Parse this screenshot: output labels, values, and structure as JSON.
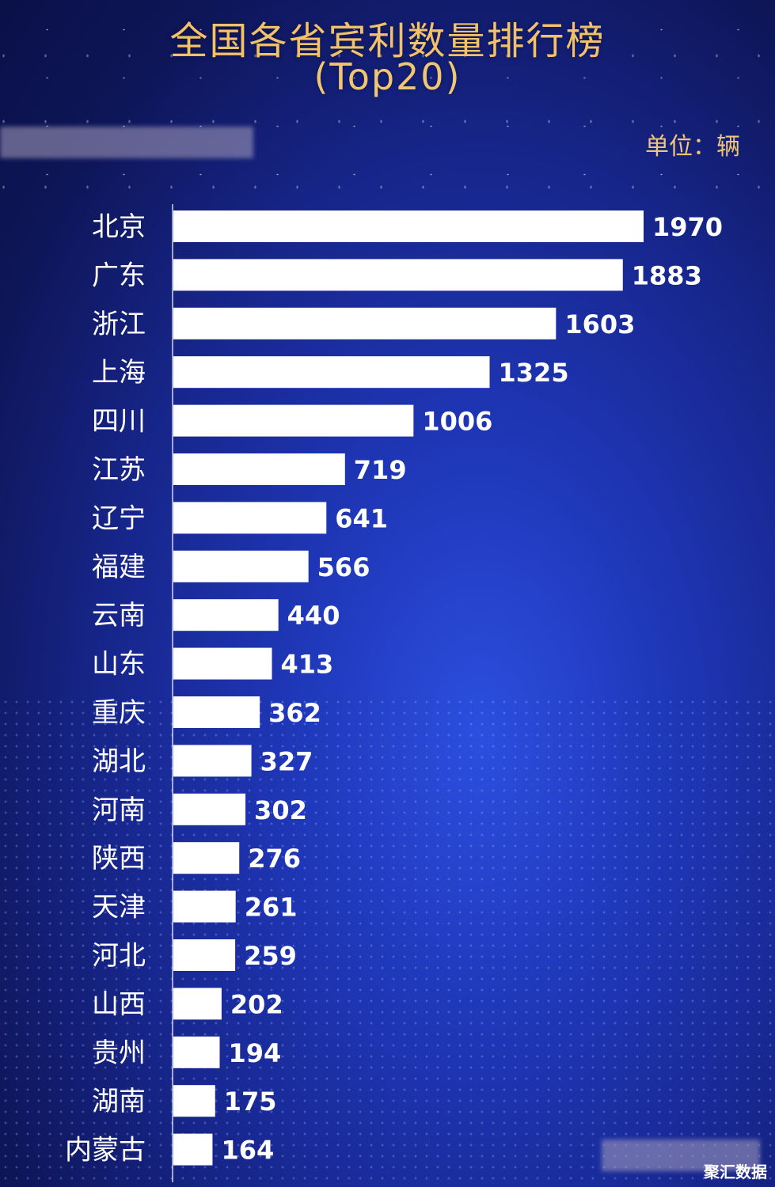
{
  "chart_data": {
    "type": "bar",
    "orientation": "horizontal",
    "title": "全国各省宾利数量排行榜",
    "subtitle": "(Top20)",
    "unit": "单位：辆",
    "categories": [
      "北京",
      "广东",
      "浙江",
      "上海",
      "四川",
      "江苏",
      "辽宁",
      "福建",
      "云南",
      "山东",
      "重庆",
      "湖北",
      "河南",
      "陕西",
      "天津",
      "河北",
      "山西",
      "贵州",
      "湖南",
      "内蒙古"
    ],
    "values": [
      1970,
      1883,
      1603,
      1325,
      1006,
      719,
      641,
      566,
      440,
      413,
      362,
      327,
      302,
      276,
      261,
      259,
      202,
      194,
      175,
      164
    ],
    "xlim": [
      0,
      1970
    ],
    "grid": false,
    "bar_color": "#ffffff"
  },
  "watermark": "聚汇数据",
  "colors": {
    "title": "#f3c16a",
    "background": "#1a2a9c"
  }
}
